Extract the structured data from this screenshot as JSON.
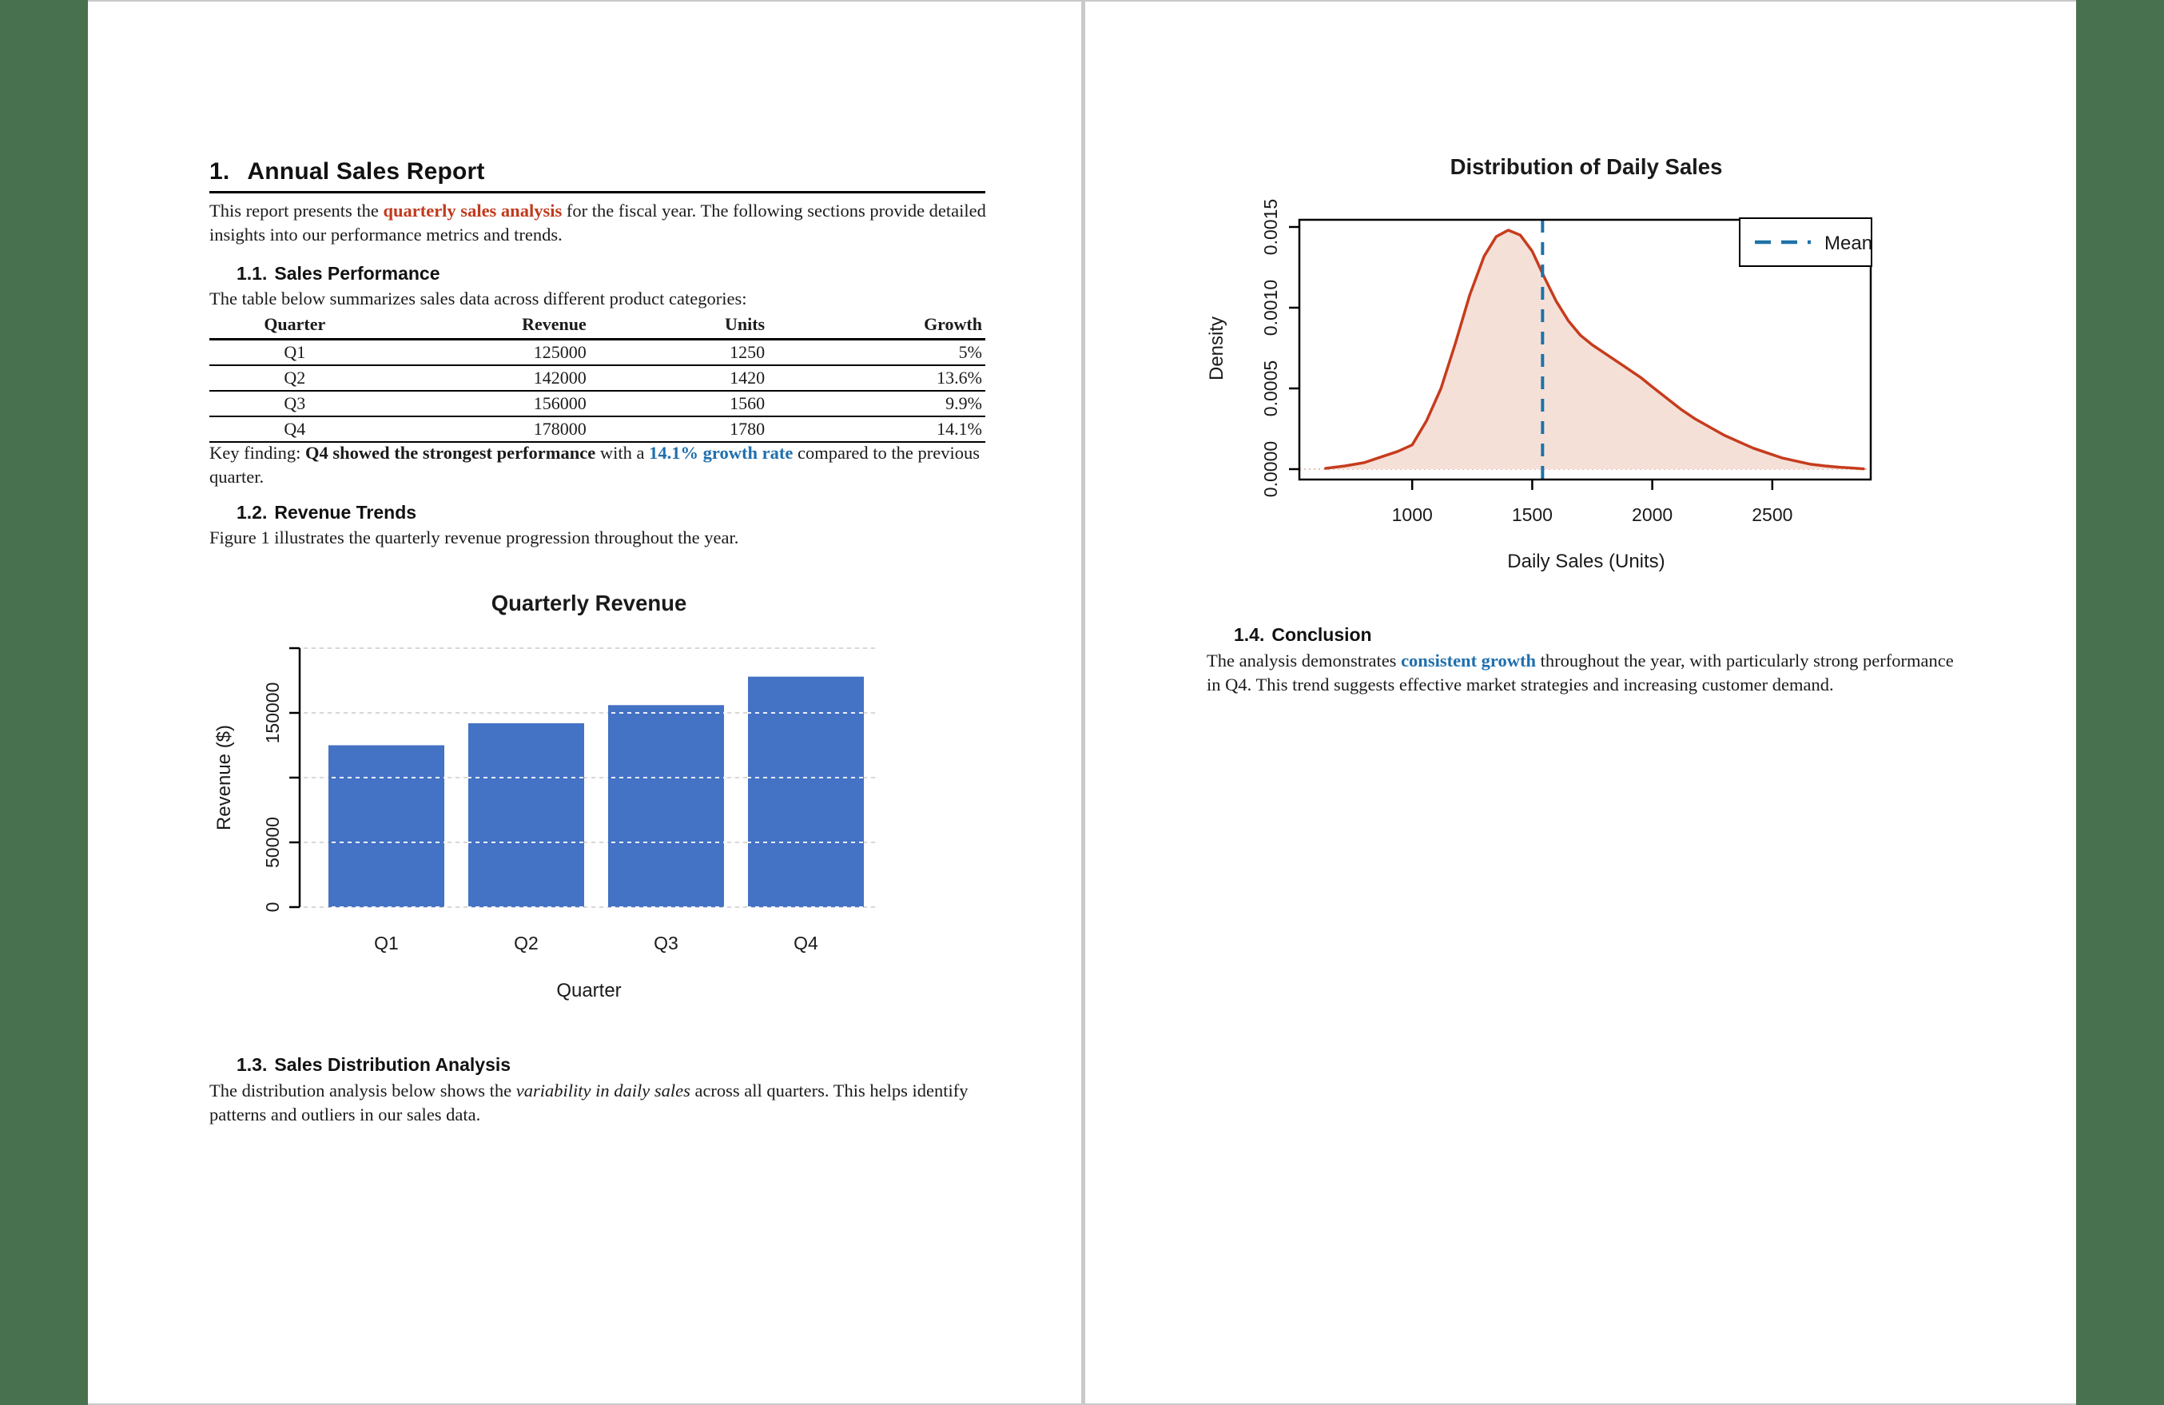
{
  "viewer": {
    "background_color": "#487150",
    "page_edge_color": "#c9c9c9"
  },
  "page1": {
    "heading": {
      "number": "1.",
      "text": "Annual Sales Report"
    },
    "intro": {
      "pre": "This report presents the ",
      "highlight": "quarterly sales analysis",
      "post": " for the fiscal year. The following sections provide detailed insights into our performance metrics and trends."
    },
    "section_1_1": {
      "number": "1.1.",
      "title": "Sales Performance",
      "body": "The table below summarizes sales data across different product categories:"
    },
    "table": {
      "headers": [
        "Quarter",
        "Revenue",
        "Units",
        "Growth"
      ],
      "rows": [
        [
          "Q1",
          "125000",
          "1250",
          "5%"
        ],
        [
          "Q2",
          "142000",
          "1420",
          "13.6%"
        ],
        [
          "Q3",
          "156000",
          "1560",
          "9.9%"
        ],
        [
          "Q4",
          "178000",
          "1780",
          "14.1%"
        ]
      ]
    },
    "key_finding": {
      "pre": "Key finding: ",
      "bold_black": "Q4 showed the strongest performance",
      "mid": " with a ",
      "bold_blue": "14.1% growth rate",
      "post": " compared to the previous quarter."
    },
    "section_1_2": {
      "number": "1.2.",
      "title": "Revenue Trends",
      "body": "Figure 1 illustrates the quarterly revenue progression throughout the year."
    },
    "section_1_3": {
      "number": "1.3.",
      "title": "Sales Distribution Analysis",
      "body_pre": "The distribution analysis below shows the ",
      "body_italic": "variability in daily sales",
      "body_post": " across all quarters. This helps identify patterns and outliers in our sales data."
    }
  },
  "page2": {
    "section_1_4": {
      "number": "1.4.",
      "title": "Conclusion",
      "pre": "The analysis demonstrates ",
      "bold_blue": "consistent growth",
      "post": " throughout the year, with particularly strong performance in Q4. This trend suggests effective market strategies and increasing customer demand."
    }
  },
  "colors": {
    "body_red": "#c03a1d",
    "body_blue": "#1f6fae",
    "bar_blue": "#4472c4",
    "grid_gray": "#d8d8d8",
    "density_line": "#c63c1d",
    "density_fill": "#f5e0d8",
    "mean_blue": "#1f72a8"
  },
  "chart_data": [
    {
      "type": "bar",
      "title": "Quarterly Revenue",
      "categories": [
        "Q1",
        "Q2",
        "Q3",
        "Q4"
      ],
      "values": [
        125000,
        142000,
        156000,
        178000
      ],
      "xlabel": "Quarter",
      "ylabel": "Revenue ($)",
      "ylim": [
        0,
        200000
      ],
      "ytick_step": 50000,
      "ytick_labels_shown": [
        0,
        50000,
        150000
      ],
      "grid": true,
      "legend": "none",
      "bar_color": "#4472c4"
    },
    {
      "type": "area",
      "title": "Distribution of Daily Sales",
      "xlabel": "Daily Sales (Units)",
      "ylabel": "Density",
      "xlim": [
        530,
        2910
      ],
      "ylim": [
        0,
        0.00157
      ],
      "xticks": [
        1000,
        1500,
        2000,
        2500
      ],
      "ytick_labels": [
        "0.0000",
        "0.0005",
        "0.0010",
        "0.0015"
      ],
      "yticks": [
        0.0,
        0.0005,
        0.001,
        0.0015
      ],
      "mean_x": 1543,
      "peak": {
        "x": 1400,
        "density": 0.00148
      },
      "legend": {
        "label": "Mean",
        "position": "top-right"
      },
      "line_color": "#c63c1d",
      "fill_color": "#f5e0d8",
      "mean_color": "#1f72a8",
      "curve": [
        [
          640,
          5e-06
        ],
        [
          720,
          2e-05
        ],
        [
          800,
          4e-05
        ],
        [
          880,
          8e-05
        ],
        [
          940,
          0.00011
        ],
        [
          1000,
          0.00015
        ],
        [
          1060,
          0.0003
        ],
        [
          1120,
          0.0005
        ],
        [
          1180,
          0.00078
        ],
        [
          1240,
          0.00108
        ],
        [
          1300,
          0.00132
        ],
        [
          1350,
          0.00144
        ],
        [
          1400,
          0.00148
        ],
        [
          1450,
          0.00145
        ],
        [
          1500,
          0.00135
        ],
        [
          1550,
          0.00119
        ],
        [
          1600,
          0.00104
        ],
        [
          1650,
          0.00092
        ],
        [
          1700,
          0.00083
        ],
        [
          1750,
          0.00077
        ],
        [
          1800,
          0.00072
        ],
        [
          1850,
          0.00067
        ],
        [
          1900,
          0.00062
        ],
        [
          1950,
          0.00057
        ],
        [
          2000,
          0.00051
        ],
        [
          2060,
          0.00044
        ],
        [
          2120,
          0.00037
        ],
        [
          2180,
          0.00031
        ],
        [
          2240,
          0.00026
        ],
        [
          2300,
          0.00021
        ],
        [
          2360,
          0.00017
        ],
        [
          2420,
          0.00013
        ],
        [
          2480,
          0.0001
        ],
        [
          2540,
          7e-05
        ],
        [
          2600,
          5e-05
        ],
        [
          2660,
          3e-05
        ],
        [
          2720,
          2e-05
        ],
        [
          2780,
          1.2e-05
        ],
        [
          2840,
          6e-06
        ],
        [
          2880,
          2e-06
        ]
      ]
    }
  ]
}
